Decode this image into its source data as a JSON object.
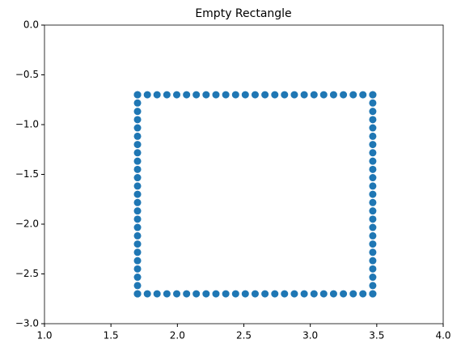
{
  "chart_data": {
    "type": "scatter",
    "title": "Empty Rectangle",
    "color": "#1f77b4",
    "xlim": [
      1.0,
      4.0
    ],
    "ylim": [
      -3.0,
      0.0
    ],
    "xticks": [
      {
        "value": 1.0,
        "label": "1.0"
      },
      {
        "value": 1.5,
        "label": "1.5"
      },
      {
        "value": 2.0,
        "label": "2.0"
      },
      {
        "value": 2.5,
        "label": "2.5"
      },
      {
        "value": 3.0,
        "label": "3.0"
      },
      {
        "value": 3.5,
        "label": "3.5"
      },
      {
        "value": 4.0,
        "label": "4.0"
      }
    ],
    "yticks": [
      {
        "value": 0.0,
        "label": "0.0"
      },
      {
        "value": -0.5,
        "label": "−0.5"
      },
      {
        "value": -1.0,
        "label": "−1.0"
      },
      {
        "value": -1.5,
        "label": "−1.5"
      },
      {
        "value": -2.0,
        "label": "−2.0"
      },
      {
        "value": -2.5,
        "label": "−2.5"
      },
      {
        "value": -3.0,
        "label": "−3.0"
      }
    ],
    "x": [
      1.7,
      1.774,
      1.847,
      1.921,
      1.995,
      2.069,
      2.142,
      2.216,
      2.29,
      2.364,
      2.438,
      2.511,
      2.585,
      2.659,
      2.733,
      2.806,
      2.88,
      2.954,
      3.028,
      3.101,
      3.175,
      3.249,
      3.323,
      3.396,
      3.47,
      1.7,
      1.774,
      1.847,
      1.921,
      1.995,
      2.069,
      2.142,
      2.216,
      2.29,
      2.364,
      2.438,
      2.511,
      2.585,
      2.659,
      2.733,
      2.806,
      2.88,
      2.954,
      3.028,
      3.101,
      3.175,
      3.249,
      3.323,
      3.396,
      3.47,
      1.7,
      1.7,
      1.7,
      1.7,
      1.7,
      1.7,
      1.7,
      1.7,
      1.7,
      1.7,
      1.7,
      1.7,
      1.7,
      1.7,
      1.7,
      1.7,
      1.7,
      1.7,
      1.7,
      1.7,
      1.7,
      1.7,
      1.7,
      1.7,
      1.7,
      3.47,
      3.47,
      3.47,
      3.47,
      3.47,
      3.47,
      3.47,
      3.47,
      3.47,
      3.47,
      3.47,
      3.47,
      3.47,
      3.47,
      3.47,
      3.47,
      3.47,
      3.47,
      3.47,
      3.47,
      3.47,
      3.47,
      3.47,
      3.47,
      3.47
    ],
    "values": [
      -0.7,
      -0.7,
      -0.7,
      -0.7,
      -0.7,
      -0.7,
      -0.7,
      -0.7,
      -0.7,
      -0.7,
      -0.7,
      -0.7,
      -0.7,
      -0.7,
      -0.7,
      -0.7,
      -0.7,
      -0.7,
      -0.7,
      -0.7,
      -0.7,
      -0.7,
      -0.7,
      -0.7,
      -0.7,
      -2.7,
      -2.7,
      -2.7,
      -2.7,
      -2.7,
      -2.7,
      -2.7,
      -2.7,
      -2.7,
      -2.7,
      -2.7,
      -2.7,
      -2.7,
      -2.7,
      -2.7,
      -2.7,
      -2.7,
      -2.7,
      -2.7,
      -2.7,
      -2.7,
      -2.7,
      -2.7,
      -2.7,
      -2.7,
      -0.7,
      -0.783,
      -0.867,
      -0.95,
      -1.033,
      -1.117,
      -1.2,
      -1.283,
      -1.367,
      -1.45,
      -1.533,
      -1.617,
      -1.7,
      -1.783,
      -1.867,
      -1.95,
      -2.033,
      -2.117,
      -2.2,
      -2.283,
      -2.367,
      -2.45,
      -2.533,
      -2.617,
      -2.7,
      -0.7,
      -0.783,
      -0.867,
      -0.95,
      -1.033,
      -1.117,
      -1.2,
      -1.283,
      -1.367,
      -1.45,
      -1.533,
      -1.617,
      -1.7,
      -1.783,
      -1.867,
      -1.95,
      -2.033,
      -2.117,
      -2.2,
      -2.283,
      -2.367,
      -2.45,
      -2.533,
      -2.617,
      -2.7
    ]
  }
}
